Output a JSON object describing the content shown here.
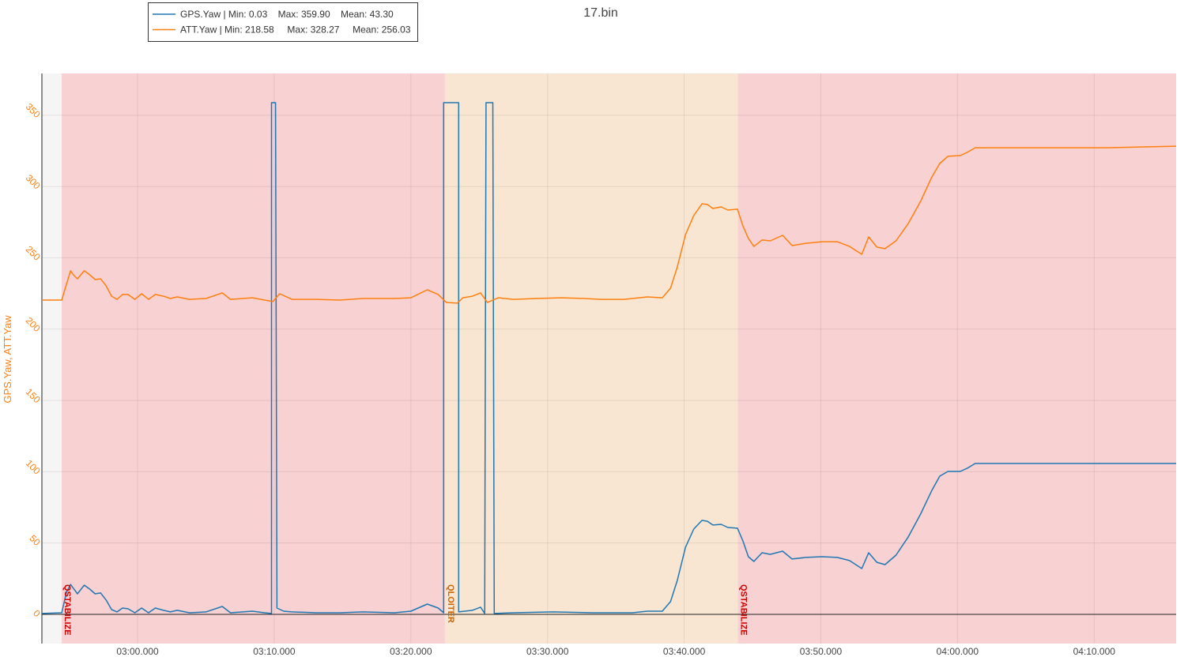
{
  "chart_data": {
    "type": "line",
    "title": "17.bin",
    "ylabel": "GPS.Yaw, ATT.Yaw",
    "xlim": [
      173.0,
      256.0
    ],
    "ylim": [
      -20.5,
      379.3
    ],
    "xticks": [
      {
        "value": 180,
        "label": "03:00.000"
      },
      {
        "value": 190,
        "label": "03:10.000"
      },
      {
        "value": 200,
        "label": "03:20.000"
      },
      {
        "value": 210,
        "label": "03:30.000"
      },
      {
        "value": 220,
        "label": "03:40.000"
      },
      {
        "value": 230,
        "label": "03:50.000"
      },
      {
        "value": 240,
        "label": "04:00.000"
      },
      {
        "value": 250,
        "label": "04:10.000"
      }
    ],
    "yticks": [
      0,
      50,
      100,
      150,
      200,
      250,
      300,
      350
    ],
    "grid": true,
    "modes": [
      {
        "name": "QSTABILIZE",
        "start": 174.45,
        "color": "#f8d1d3",
        "text_color": "#cc0000"
      },
      {
        "name": "QLOITER",
        "start": 202.49,
        "color": "#f8e6d3",
        "text_color": "#cc6600"
      },
      {
        "name": "QSTABILIZE",
        "start": 223.93,
        "color": "#f8d1d3",
        "text_color": "#cc0000"
      }
    ],
    "series": [
      {
        "name": "GPS.Yaw | Min: 0.03    Max: 359.90    Mean: 43.30",
        "color": "#1f77b4",
        "x": [
          173.0,
          174.45,
          174.8,
          175.1,
          175.3,
          175.6,
          176.1,
          176.5,
          176.9,
          177.3,
          177.7,
          178.1,
          178.5,
          178.9,
          179.3,
          179.8,
          180.3,
          180.8,
          181.3,
          181.9,
          182.4,
          182.9,
          183.8,
          185.0,
          186.2,
          186.8,
          188.4,
          189.3,
          189.8,
          189.8,
          190.1,
          190.2,
          190.7,
          191.3,
          193.1,
          194.8,
          196.5,
          198.8,
          200.0,
          201.2,
          202.0,
          202.4,
          202.4,
          203.5,
          203.5,
          204.5,
          205.1,
          205.4,
          205.5,
          206.0,
          206.1,
          207.5,
          210.4,
          213.3,
          216.2,
          217.3,
          218.4,
          219.0,
          219.5,
          220.1,
          220.7,
          221.3,
          221.7,
          222.1,
          222.7,
          223.2,
          223.9,
          224.3,
          224.7,
          225.1,
          225.7,
          226.3,
          227.2,
          227.9,
          228.9,
          230.1,
          231.2,
          232.1,
          233.0,
          233.5,
          234.1,
          234.7,
          235.5,
          236.4,
          237.3,
          238.1,
          238.7,
          239.3,
          240.2,
          240.7,
          241.3,
          245.1,
          256.0
        ],
        "values": [
          0.6,
          1.1,
          15.5,
          21.0,
          18.3,
          14.4,
          20.5,
          17.7,
          14.4,
          15.0,
          10.0,
          3.3,
          1.7,
          4.4,
          3.9,
          1.1,
          4.4,
          1.1,
          4.4,
          2.8,
          1.7,
          2.8,
          1.1,
          1.7,
          5.5,
          1.1,
          2.2,
          1.1,
          0.6,
          358.8,
          358.8,
          4.4,
          2.2,
          1.7,
          1.1,
          1.1,
          1.7,
          1.1,
          2.2,
          7.2,
          4.4,
          1.1,
          358.8,
          358.8,
          1.7,
          2.8,
          5.0,
          0.6,
          358.8,
          358.8,
          0.6,
          1.1,
          1.7,
          1.1,
          1.1,
          2.2,
          2.2,
          8.9,
          23.8,
          47.1,
          59.8,
          65.9,
          65.3,
          62.6,
          63.1,
          60.9,
          60.4,
          51.5,
          40.4,
          37.1,
          43.2,
          42.1,
          44.3,
          38.8,
          39.9,
          40.4,
          39.9,
          37.7,
          32.1,
          43.2,
          36.5,
          34.9,
          41.5,
          54.3,
          70.3,
          86.4,
          96.9,
          100.2,
          100.2,
          102.4,
          105.8,
          105.8,
          105.8
        ]
      },
      {
        "name": "ATT.Yaw | Min: 218.58     Max: 328.27     Mean: 256.03",
        "color": "#ff7f0e",
        "x": [
          173.0,
          174.45,
          174.8,
          175.1,
          175.3,
          175.6,
          176.1,
          176.5,
          176.9,
          177.3,
          177.7,
          178.1,
          178.5,
          178.9,
          179.3,
          179.8,
          180.3,
          180.8,
          181.3,
          181.9,
          182.4,
          182.9,
          183.8,
          185.0,
          186.2,
          186.8,
          188.4,
          189.3,
          189.9,
          190.4,
          191.3,
          193.1,
          194.8,
          196.5,
          198.8,
          200.0,
          201.2,
          202.0,
          202.6,
          203.4,
          203.8,
          204.5,
          205.1,
          205.6,
          206.4,
          207.5,
          209.2,
          211.0,
          212.7,
          213.9,
          215.6,
          217.3,
          218.4,
          219.0,
          219.5,
          220.1,
          220.7,
          221.3,
          221.7,
          222.1,
          222.7,
          223.2,
          223.9,
          224.3,
          224.7,
          225.1,
          225.7,
          226.3,
          227.2,
          227.9,
          228.9,
          230.1,
          231.2,
          232.1,
          233.0,
          233.5,
          234.1,
          234.7,
          235.5,
          236.4,
          237.3,
          238.1,
          238.7,
          239.3,
          240.2,
          240.7,
          241.3,
          245.1,
          250.9,
          256.0
        ],
        "values": [
          220.4,
          220.4,
          231.5,
          240.9,
          238.1,
          235.3,
          240.9,
          238.1,
          234.8,
          235.3,
          230.3,
          223.1,
          220.9,
          224.3,
          224.3,
          220.9,
          224.8,
          220.9,
          224.3,
          223.1,
          221.5,
          222.6,
          220.9,
          221.5,
          225.4,
          220.9,
          222.0,
          220.4,
          219.3,
          224.8,
          220.9,
          220.9,
          220.4,
          221.5,
          221.5,
          222.0,
          227.6,
          224.3,
          218.7,
          218.2,
          222.0,
          223.1,
          225.4,
          218.7,
          222.0,
          220.9,
          221.5,
          222.0,
          221.5,
          220.9,
          220.9,
          222.6,
          222.0,
          228.7,
          243.6,
          266.3,
          279.6,
          287.9,
          287.4,
          284.6,
          285.7,
          283.5,
          284.1,
          272.4,
          263.6,
          258.0,
          262.5,
          261.9,
          265.8,
          258.6,
          260.2,
          261.3,
          261.3,
          258.0,
          252.5,
          264.7,
          257.5,
          256.4,
          261.9,
          274.1,
          289.6,
          306.2,
          316.2,
          321.2,
          321.7,
          323.9,
          327.2,
          327.2,
          327.2,
          328.3
        ]
      }
    ]
  }
}
